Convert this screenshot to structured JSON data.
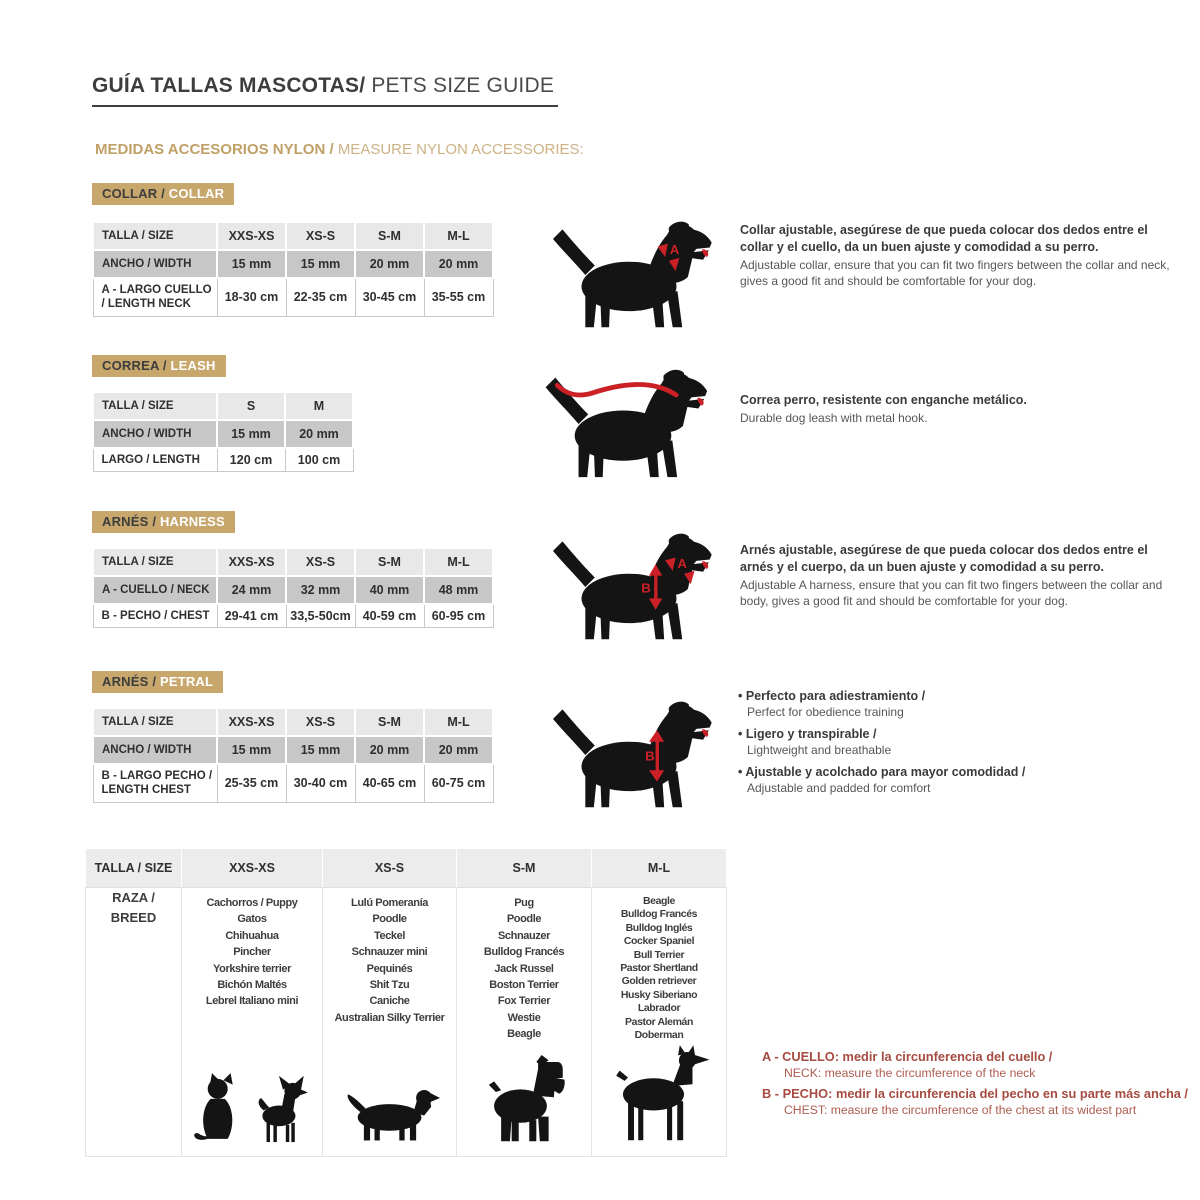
{
  "page": {
    "title_es": "GUÍA TALLAS MASCOTAS/",
    "title_en": "PETS SIZE GUIDE",
    "subtitle_es": "MEDIDAS ACCESORIOS NYLON /",
    "subtitle_en": "MEASURE NYLON ACCESSORIES:"
  },
  "colors": {
    "accent_tan": "#c7a76c",
    "title_dark": "#3d3d3d",
    "table_header_gray": "#e8e8e8",
    "table_shaded_gray": "#c7c7c7",
    "arrow_red": "#cc2027",
    "note_red": "#a54b41"
  },
  "sections": [
    {
      "badge_es": "COLLAR /",
      "badge_en": "COLLAR",
      "table": {
        "col0": "TALLA / SIZE",
        "cols": [
          "XXS-XS",
          "XS-S",
          "S-M",
          "M-L"
        ],
        "row1_label": "ANCHO / WIDTH",
        "row1": [
          "15 mm",
          "15 mm",
          "20 mm",
          "20 mm"
        ],
        "row2_label": "A - LARGO CUELLO / LENGTH NECK",
        "row2": [
          "18-30 cm",
          "22-35 cm",
          "30-45 cm",
          "35-55 cm"
        ]
      },
      "desc_es": "Collar ajustable, asegúrese de que pueda colocar dos dedos entre el collar y el cuello, da un buen ajuste y comodidad a su perro.",
      "desc_en": "Adjustable collar, ensure that you can fit two fingers between the collar and neck, gives a good fit and should be comfortable for your dog."
    },
    {
      "badge_es": "CORREA /",
      "badge_en": "LEASH",
      "table": {
        "col0": "TALLA / SIZE",
        "cols": [
          "S",
          "M"
        ],
        "row1_label": "ANCHO / WIDTH",
        "row1": [
          "15 mm",
          "20 mm"
        ],
        "row2_label": "LARGO / LENGTH",
        "row2": [
          "120 cm",
          "100 cm"
        ]
      },
      "desc_es": "Correa perro, resistente con enganche metálico.",
      "desc_en": "Durable dog leash with metal hook."
    },
    {
      "badge_es": "ARNÉS /",
      "badge_en": "HARNESS",
      "table": {
        "col0": "TALLA / SIZE",
        "cols": [
          "XXS-XS",
          "XS-S",
          "S-M",
          "M-L"
        ],
        "row1_label": "A - CUELLO / NECK",
        "row1": [
          "24 mm",
          "32 mm",
          "40 mm",
          "48 mm"
        ],
        "row2_label": "B - PECHO / CHEST",
        "row2": [
          "29-41 cm",
          "33,5-50cm",
          "40-59 cm",
          "60-95 cm"
        ]
      },
      "desc_es": "Arnés ajustable, asegúrese de que pueda colocar dos dedos entre el arnés y el cuerpo, da un buen ajuste y comodidad a su perro.",
      "desc_en": "Adjustable A harness, ensure that you can fit two fingers between the collar and body, gives a good fit and should be comfortable for your dog."
    },
    {
      "badge_es": "ARNÉS /",
      "badge_en": "PETRAL",
      "table": {
        "col0": "TALLA / SIZE",
        "cols": [
          "XXS-XS",
          "XS-S",
          "S-M",
          "M-L"
        ],
        "row1_label": "ANCHO / WIDTH",
        "row1": [
          "15 mm",
          "15 mm",
          "20 mm",
          "20 mm"
        ],
        "row2_label": "B - LARGO PECHO / LENGTH CHEST",
        "row2": [
          "25-35 cm",
          "30-40 cm",
          "40-65 cm",
          "60-75 cm"
        ]
      },
      "bullets": [
        {
          "es": "Perfecto para adiestramiento /",
          "en": "Perfect for obedience training"
        },
        {
          "es": "Ligero y transpirable /",
          "en": "Lightweight and breathable"
        },
        {
          "es": "Ajustable y acolchado para mayor comodidad /",
          "en": "Adjustable and padded for comfort"
        }
      ]
    }
  ],
  "breed_table": {
    "col0_header": "TALLA /  SIZE",
    "size_headers": [
      "XXS-XS",
      "XS-S",
      "S-M",
      "M-L"
    ],
    "row_label": "RAZA /\nBREED",
    "breeds_xxs_xs": [
      "Cachorros / Puppy",
      "Gatos",
      "Chihuahua",
      "Pincher",
      "Yorkshire terrier",
      "Bichón Maltés",
      "Lebrel Italiano mini"
    ],
    "breeds_xs_s": [
      "Lulú Pomeranía",
      "Poodle",
      "Teckel",
      "Schnauzer mini",
      "Pequinés",
      "Shit Tzu",
      "Caniche",
      "Australian Silky Terrier"
    ],
    "breeds_s_m": [
      "Pug",
      "Poodle",
      "Schnauzer",
      "Bulldog Francés",
      "Jack Russel",
      "Boston Terrier",
      "Fox Terrier",
      "Westie",
      "Beagle"
    ],
    "breeds_m_l": [
      "Beagle",
      "Bulldog Francés",
      "Bulldog Inglés",
      "Cocker Spaniel",
      "Bull Terrier",
      "Pastor Shertland",
      "Golden retriever",
      "Husky Siberiano",
      "Labrador",
      "Pastor Alemán",
      "Doberman"
    ],
    "animals": {
      "xxs_xs": [
        "cat",
        "chihuahua"
      ],
      "xs_s": [
        "dachshund"
      ],
      "s_m": [
        "schnauzer"
      ],
      "m_l": [
        "doberman"
      ]
    }
  },
  "notes": [
    {
      "bold": "A - CUELLO: medir la circunferencia del cuello /",
      "regular": "NECK: measure the circumference of the neck"
    },
    {
      "bold": "B - PECHO: medir la circunferencia del pecho en su parte más ancha /",
      "regular": "CHEST: measure the circumference of the chest at its widest part"
    }
  ]
}
